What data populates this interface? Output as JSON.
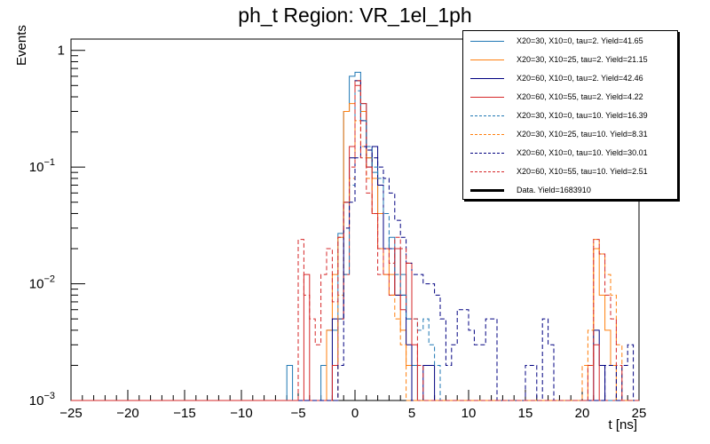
{
  "chart_data": {
    "type": "line",
    "drawstyle": "step",
    "title": "ph_t Region: VR_1el_1ph",
    "xlabel": "t [ns]",
    "ylabel": "Events",
    "xlim": [
      -25,
      25
    ],
    "ylim": [
      0.001,
      1.25
    ],
    "yscale": "log",
    "bin_width": 0.5,
    "x_ticks": [
      -25,
      -20,
      -15,
      -10,
      -5,
      0,
      5,
      10,
      15,
      20,
      25
    ],
    "x_tick_labels": [
      "−25",
      "−20",
      "−15",
      "−10",
      "−5",
      "0",
      "5",
      "10",
      "15",
      "20",
      "25"
    ],
    "y_ticks": [
      0.001,
      0.01,
      0.1,
      1
    ],
    "y_tick_labels": [
      {
        "base": "10",
        "exp": "−3"
      },
      {
        "base": "10",
        "exp": "−2"
      },
      {
        "base": "10",
        "exp": "−1"
      },
      {
        "base": "1",
        "exp": ""
      }
    ],
    "series": [
      {
        "name": "X20=30, X10=0, tau=2. Yield=41.65",
        "color": "#1f77b4",
        "dashed": false,
        "bins": [
          [
            -6,
            0.002
          ],
          [
            -5.5,
            0.001
          ],
          [
            -3,
            0.002
          ],
          [
            -2.5,
            0.004
          ],
          [
            -2,
            0.004
          ],
          [
            -1.5,
            0.027
          ],
          [
            -1,
            0.3
          ],
          [
            -0.5,
            0.6
          ],
          [
            0,
            0.65
          ],
          [
            0.5,
            0.35
          ],
          [
            1,
            0.12
          ],
          [
            1.5,
            0.09
          ],
          [
            2,
            0.04
          ],
          [
            2.5,
            0.02
          ],
          [
            3,
            0.025
          ],
          [
            3.5,
            0.02
          ],
          [
            4,
            0.012
          ],
          [
            4.5,
            0.005
          ],
          [
            5,
            0.002
          ],
          [
            5.5,
            0.001
          ]
        ]
      },
      {
        "name": "X20=30, X10=25, tau=2. Yield=21.15",
        "color": "#ff7f0e",
        "dashed": false,
        "bins": [
          [
            -2.5,
            0.004
          ],
          [
            -2,
            0.012
          ],
          [
            -1.5,
            0.025
          ],
          [
            -1,
            0.3
          ],
          [
            -0.5,
            0.35
          ],
          [
            0,
            0.55
          ],
          [
            0.5,
            0.3
          ],
          [
            1,
            0.12
          ],
          [
            1.5,
            0.08
          ],
          [
            2,
            0.04
          ],
          [
            2.5,
            0.02
          ],
          [
            3,
            0.012
          ],
          [
            3.5,
            0.008
          ],
          [
            4,
            0.004
          ],
          [
            4.5,
            0.002
          ],
          [
            5,
            0.001
          ],
          [
            20.5,
            0.002
          ],
          [
            21,
            0.02
          ],
          [
            21.5,
            0.008
          ],
          [
            22,
            0.004
          ],
          [
            22.5,
            0.002
          ]
        ]
      },
      {
        "name": "X20=60, X10=0, tau=2. Yield=42.46",
        "color": "#000080",
        "dashed": false,
        "bins": [
          [
            -2.5,
            0.001
          ],
          [
            -2,
            0.005
          ],
          [
            -1.5,
            0.005
          ],
          [
            -1,
            0.05
          ],
          [
            -0.5,
            0.12
          ],
          [
            0,
            0.55
          ],
          [
            0.5,
            0.25
          ],
          [
            1,
            0.1
          ],
          [
            1.5,
            0.15
          ],
          [
            2,
            0.07
          ],
          [
            2.5,
            0.02
          ],
          [
            3,
            0.02
          ],
          [
            3.5,
            0.008
          ],
          [
            4,
            0.008
          ],
          [
            4.5,
            0.003
          ],
          [
            5,
            0.001
          ],
          [
            6,
            0.002
          ],
          [
            6.5,
            0.002
          ],
          [
            7,
            0.001
          ],
          [
            8,
            0.001
          ],
          [
            21,
            0.004
          ],
          [
            21.5,
            0.002
          ],
          [
            22,
            0.001
          ]
        ]
      },
      {
        "name": "X20=60, X10=55, tau=2. Yield=4.22",
        "color": "#d62728",
        "dashed": false,
        "bins": [
          [
            -4.5,
            0.012
          ],
          [
            -4,
            0.001
          ],
          [
            -2,
            0.002
          ],
          [
            -1.5,
            0.005
          ],
          [
            -1,
            0.012
          ],
          [
            -0.5,
            0.15
          ],
          [
            0,
            0.5
          ],
          [
            0.5,
            0.35
          ],
          [
            1,
            0.1
          ],
          [
            1.5,
            0.04
          ],
          [
            2,
            0.02
          ],
          [
            2.5,
            0.012
          ],
          [
            3,
            0.008
          ],
          [
            3.5,
            0.02
          ],
          [
            4,
            0.006
          ],
          [
            4.5,
            0.015
          ],
          [
            5,
            0.003
          ],
          [
            5.5,
            0.001
          ],
          [
            21,
            0.003
          ],
          [
            21.5,
            0.001
          ]
        ]
      },
      {
        "name": "X20=30, X10=0, tau=10. Yield=16.39",
        "color": "#1f77b4",
        "dashed": true,
        "bins": [
          [
            -1.5,
            0.005
          ],
          [
            -1,
            0.012
          ],
          [
            -0.5,
            0.07
          ],
          [
            0,
            0.45
          ],
          [
            0.5,
            0.25
          ],
          [
            1,
            0.15
          ],
          [
            1.5,
            0.1
          ],
          [
            2,
            0.08
          ],
          [
            2.5,
            0.04
          ],
          [
            3,
            0.02
          ],
          [
            3.5,
            0.012
          ],
          [
            4,
            0.008
          ],
          [
            4.5,
            0.005
          ],
          [
            5,
            0.005
          ],
          [
            5.5,
            0.004
          ],
          [
            6,
            0.005
          ],
          [
            6.5,
            0.003
          ],
          [
            7,
            0.002
          ],
          [
            7.5,
            0.001
          ]
        ]
      },
      {
        "name": "X20=30, X10=25, tau=10. Yield=8.31",
        "color": "#ff7f0e",
        "dashed": true,
        "bins": [
          [
            -1.5,
            0.008
          ],
          [
            -1,
            0.05
          ],
          [
            -0.5,
            0.08
          ],
          [
            0,
            0.25
          ],
          [
            0.5,
            0.15
          ],
          [
            1,
            0.08
          ],
          [
            1.5,
            0.04
          ],
          [
            2,
            0.02
          ],
          [
            2.5,
            0.012
          ],
          [
            3,
            0.008
          ],
          [
            3.5,
            0.005
          ],
          [
            4,
            0.003
          ],
          [
            20,
            0.002
          ],
          [
            20.5,
            0.004
          ],
          [
            21,
            0.024
          ],
          [
            21.5,
            0.018
          ],
          [
            22,
            0.012
          ],
          [
            22.5,
            0.008
          ],
          [
            23,
            0.003
          ],
          [
            23.5,
            0.001
          ]
        ]
      },
      {
        "name": "X20=60, X10=0, tau=10. Yield=30.01",
        "color": "#000080",
        "dashed": true,
        "bins": [
          [
            -1.5,
            0.002
          ],
          [
            -1,
            0.03
          ],
          [
            -0.5,
            0.05
          ],
          [
            0,
            0.12
          ],
          [
            0.5,
            0.15
          ],
          [
            1,
            0.14
          ],
          [
            1.5,
            0.12
          ],
          [
            2,
            0.1
          ],
          [
            2.5,
            0.08
          ],
          [
            3,
            0.06
          ],
          [
            3.5,
            0.035
          ],
          [
            4,
            0.025
          ],
          [
            4.5,
            0.015
          ],
          [
            5,
            0.012
          ],
          [
            5.5,
            0.012
          ],
          [
            6,
            0.01
          ],
          [
            6.5,
            0.01
          ],
          [
            7,
            0.008
          ],
          [
            7.5,
            0.005
          ],
          [
            8,
            0.002
          ],
          [
            8.5,
            0.003
          ],
          [
            9,
            0.006
          ],
          [
            9.5,
            0.006
          ],
          [
            10,
            0.004
          ],
          [
            10.5,
            0.003
          ],
          [
            11,
            0.003
          ],
          [
            11.5,
            0.005
          ],
          [
            12,
            0.005
          ],
          [
            12.5,
            0.001
          ],
          [
            13,
            0.001
          ],
          [
            14,
            0.001
          ],
          [
            15,
            0.002
          ],
          [
            15.5,
            0.002
          ],
          [
            16,
            0.001
          ],
          [
            16.5,
            0.005
          ],
          [
            17,
            0.003
          ],
          [
            17.5,
            0.001
          ],
          [
            22,
            0.002
          ],
          [
            22.5,
            0.002
          ],
          [
            23,
            0.001
          ],
          [
            23.5,
            0.002
          ],
          [
            24,
            0.003
          ],
          [
            24.5,
            0.001
          ]
        ]
      },
      {
        "name": "X20=60, X10=55, tau=10. Yield=2.51",
        "color": "#d62728",
        "dashed": true,
        "bins": [
          [
            -5,
            0.024
          ],
          [
            -4.5,
            0.008
          ],
          [
            -4,
            0.005
          ],
          [
            -3.5,
            0.003
          ],
          [
            -3,
            0.012
          ],
          [
            -2.5,
            0.02
          ],
          [
            -2,
            0.007
          ],
          [
            -1.5,
            0.025
          ],
          [
            -1,
            0.05
          ],
          [
            -0.5,
            0.1
          ],
          [
            0,
            0.55
          ],
          [
            0.5,
            0.12
          ],
          [
            1,
            0.06
          ],
          [
            1.5,
            0.04
          ],
          [
            2,
            0.012
          ],
          [
            2.5,
            0.02
          ],
          [
            3,
            0.015
          ],
          [
            3.5,
            0.025
          ],
          [
            4,
            0.02
          ],
          [
            4.5,
            0.015
          ],
          [
            5,
            0.005
          ],
          [
            5.5,
            0.002
          ],
          [
            20.5,
            0.002
          ],
          [
            21,
            0.024
          ],
          [
            21.5,
            0.018
          ],
          [
            22,
            0.008
          ],
          [
            22.5,
            0.005
          ],
          [
            23,
            0.002
          ]
        ]
      },
      {
        "name": "Data. Yield=1683910",
        "color": "#000000",
        "dashed": false,
        "bold": true,
        "bins": []
      }
    ]
  }
}
